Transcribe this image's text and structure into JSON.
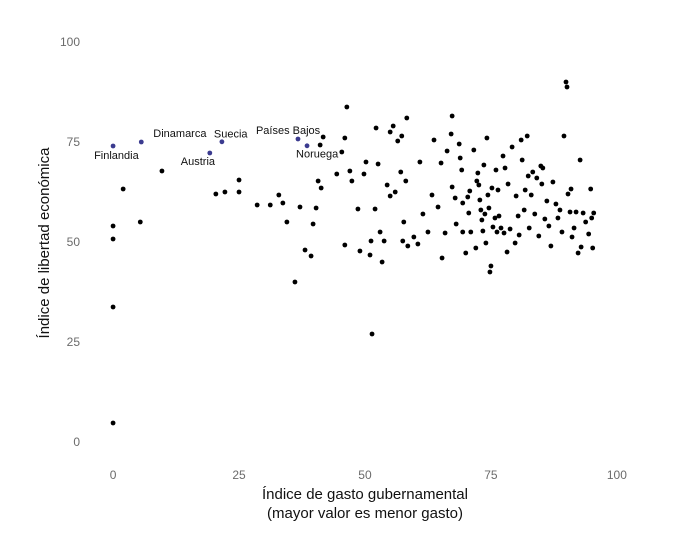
{
  "chart_data": {
    "type": "scatter",
    "xlabel": [
      "Índice de gasto gubernamental",
      "(mayor valor es menor gasto)"
    ],
    "ylabel": "Índice de libertad económica",
    "xlim": [
      -2,
      103
    ],
    "ylim": [
      -3,
      103
    ],
    "xticks": [
      0,
      25,
      50,
      75,
      100
    ],
    "yticks": [
      0,
      25,
      50,
      75,
      100
    ],
    "grid": false,
    "series": [
      {
        "color": "#000000",
        "x": [
          0,
          0,
          0,
          0,
          2,
          5.4,
          9.7,
          20.4,
          22.2,
          25,
          25,
          28.6,
          31.2,
          32.9,
          33.7,
          34.5,
          36.1,
          37.1,
          38.1,
          39.3,
          39.7,
          40.3,
          40.7,
          41.3,
          41.1,
          41.7,
          44.4,
          45.4,
          46,
          46.4,
          46,
          47,
          47.4,
          48.6,
          49,
          49.8,
          50.2,
          51,
          51.2,
          51.4,
          52,
          52.2,
          52.6,
          53,
          53.4,
          53.8,
          54.4,
          55,
          55,
          55.6,
          56,
          56.5,
          57.1,
          57.3,
          57.5,
          57.7,
          58.1,
          58.3,
          58.5,
          59.7,
          60.5,
          60.9,
          61.5,
          62.5,
          63.3,
          63.7,
          64.5,
          65.1,
          65.3,
          65.9,
          66.3,
          67.1,
          67.3,
          67.3,
          67.9,
          68.1,
          68.7,
          68.9,
          69.2,
          69.4,
          69.4,
          70,
          70.4,
          70.6,
          70.8,
          71,
          71.6,
          72,
          72.2,
          72.4,
          72.6,
          72.8,
          73,
          73.2,
          73.4,
          73.6,
          73.8,
          74,
          74.2,
          74.4,
          74.6,
          74.8,
          75,
          75.2,
          75.4,
          75.8,
          76,
          76.2,
          76.4,
          76.6,
          77,
          77.4,
          77.6,
          77.8,
          78.2,
          78.4,
          78.8,
          79.2,
          79.8,
          80,
          80.4,
          80.6,
          81,
          81.2,
          81.6,
          81.8,
          82.2,
          82.4,
          82.6,
          83,
          83.3,
          83.7,
          84.1,
          84.5,
          84.9,
          85.1,
          85.3,
          85.7,
          86.1,
          86.5,
          86.9,
          87.3,
          87.9,
          88.3,
          88.7,
          89.1,
          89.5,
          89.9,
          90.1,
          90.3,
          90.7,
          90.9,
          91.1,
          91.5,
          91.9,
          92.3,
          92.7,
          92.9,
          93.3,
          93.8,
          94.4,
          94.8,
          95,
          95.2,
          95.4
        ],
        "y": [
          54.25,
          51,
          34,
          5,
          63.5,
          55.25,
          68,
          62.25,
          62.75,
          65.75,
          62.75,
          59.5,
          59.5,
          62,
          60,
          55.25,
          40.25,
          59,
          48.25,
          46.75,
          54.75,
          58.75,
          65.5,
          63.75,
          74.5,
          76.5,
          67.25,
          72.75,
          76.25,
          84,
          49.5,
          68,
          65.5,
          58.5,
          48,
          67.25,
          70.25,
          47,
          50.5,
          27.25,
          58.5,
          78.75,
          69.75,
          52.75,
          45.25,
          50.5,
          64.5,
          77.75,
          61.75,
          79.25,
          62.75,
          75.5,
          67.75,
          76.75,
          50.5,
          55.25,
          65.5,
          81.25,
          49.25,
          51.5,
          49.75,
          70.25,
          57.25,
          52.75,
          62,
          75.75,
          59,
          70,
          46.25,
          52.5,
          73,
          77.25,
          81.75,
          64,
          61.25,
          54.75,
          74.75,
          71.25,
          68.25,
          60,
          52.75,
          47.5,
          61.5,
          57.5,
          63,
          52.75,
          73.25,
          48.75,
          65.5,
          67.5,
          64.5,
          60.75,
          58.25,
          55.75,
          53,
          69.5,
          57.25,
          50,
          76.25,
          62,
          58.75,
          42.75,
          44.25,
          63.75,
          54,
          56.25,
          68.25,
          52.75,
          63.25,
          56.75,
          53.75,
          71.75,
          52.5,
          68.75,
          47.75,
          64.75,
          53.5,
          74,
          50,
          61.75,
          56.75,
          52,
          75.75,
          70.75,
          58.25,
          63.25,
          76.75,
          66.75,
          53.75,
          62,
          67.75,
          57.25,
          66.25,
          51.75,
          69.25,
          64.75,
          68.75,
          56,
          60.5,
          54.25,
          49.25,
          65.25,
          59.75,
          56.25,
          58.25,
          52.75,
          76.75,
          90.25,
          89,
          62.25,
          57.75,
          63.5,
          51.5,
          53.75,
          57.75,
          47.5,
          70.75,
          49,
          57.5,
          55.25,
          52.25,
          63.5,
          56.25,
          48.75,
          57.5
        ]
      },
      {
        "color": "#3b3b8f",
        "x": [
          0,
          5.6,
          21.6,
          19.2,
          36.7,
          38.5
        ],
        "y": [
          74.25,
          75.25,
          75.3,
          72.5,
          76,
          74.3
        ],
        "labels": [
          "Finlandia",
          "Dinamarca",
          "Suecia",
          "Austria",
          "Países Bajos",
          "Noruega"
        ]
      }
    ]
  }
}
